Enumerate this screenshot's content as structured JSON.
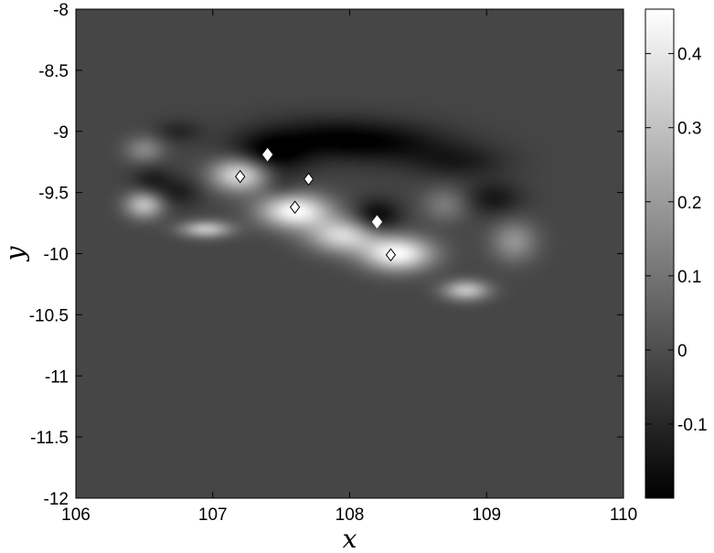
{
  "chart_data": {
    "type": "heatmap",
    "title": "",
    "xlabel": "x",
    "ylabel": "y",
    "xlim": [
      106,
      110
    ],
    "ylim": [
      -12,
      -8
    ],
    "xticks": [
      106,
      107,
      108,
      109,
      110
    ],
    "yticks": [
      -8,
      -8.5,
      -9,
      -9.5,
      -10,
      -10.5,
      -11,
      -11.5,
      -12
    ],
    "colorbar": {
      "range": [
        -0.2,
        0.46
      ],
      "ticks": [
        0.4,
        0.3,
        0.2,
        0.1,
        0,
        -0.1
      ],
      "colormap": "gray"
    },
    "background_value": -0.02,
    "blobs": [
      {
        "x": 107.4,
        "y": -9.2,
        "value": -0.2,
        "sx": 0.2,
        "sy": 0.12
      },
      {
        "x": 107.8,
        "y": -9.05,
        "value": -0.15,
        "sx": 0.35,
        "sy": 0.12
      },
      {
        "x": 108.3,
        "y": -9.1,
        "value": -0.14,
        "sx": 0.35,
        "sy": 0.12
      },
      {
        "x": 108.2,
        "y": -9.7,
        "value": -0.2,
        "sx": 0.12,
        "sy": 0.1
      },
      {
        "x": 108.8,
        "y": -9.25,
        "value": -0.12,
        "sx": 0.25,
        "sy": 0.1
      },
      {
        "x": 109.05,
        "y": -9.55,
        "value": -0.14,
        "sx": 0.15,
        "sy": 0.1
      },
      {
        "x": 106.75,
        "y": -9.0,
        "value": -0.1,
        "sx": 0.12,
        "sy": 0.07
      },
      {
        "x": 106.55,
        "y": -9.4,
        "value": -0.12,
        "sx": 0.1,
        "sy": 0.09
      },
      {
        "x": 106.75,
        "y": -9.5,
        "value": -0.12,
        "sx": 0.12,
        "sy": 0.09
      },
      {
        "x": 107.5,
        "y": -9.45,
        "value": -0.08,
        "sx": 0.1,
        "sy": 0.08
      },
      {
        "x": 107.2,
        "y": -9.35,
        "value": 0.4,
        "sx": 0.15,
        "sy": 0.1
      },
      {
        "x": 107.6,
        "y": -9.65,
        "value": 0.45,
        "sx": 0.18,
        "sy": 0.1
      },
      {
        "x": 107.95,
        "y": -9.85,
        "value": 0.35,
        "sx": 0.18,
        "sy": 0.1
      },
      {
        "x": 108.35,
        "y": -10.0,
        "value": 0.45,
        "sx": 0.18,
        "sy": 0.1
      },
      {
        "x": 106.5,
        "y": -9.6,
        "value": 0.3,
        "sx": 0.1,
        "sy": 0.08
      },
      {
        "x": 106.95,
        "y": -9.8,
        "value": 0.3,
        "sx": 0.13,
        "sy": 0.05
      },
      {
        "x": 106.5,
        "y": -9.15,
        "value": 0.15,
        "sx": 0.1,
        "sy": 0.08
      },
      {
        "x": 108.7,
        "y": -9.6,
        "value": 0.12,
        "sx": 0.12,
        "sy": 0.1
      },
      {
        "x": 109.2,
        "y": -9.9,
        "value": 0.18,
        "sx": 0.12,
        "sy": 0.12
      },
      {
        "x": 108.85,
        "y": -10.3,
        "value": 0.3,
        "sx": 0.12,
        "sy": 0.06
      }
    ],
    "markers": [
      {
        "x": 107.4,
        "y": -9.19,
        "fill": "#ffffff",
        "edge": "#ffffff"
      },
      {
        "x": 107.7,
        "y": -9.39,
        "fill": "#ffffff",
        "edge": "#000000"
      },
      {
        "x": 108.2,
        "y": -9.74,
        "fill": "#ffffff",
        "edge": "#ffffff"
      },
      {
        "x": 107.2,
        "y": -9.37,
        "fill": "#ffffff",
        "edge": "#000000"
      },
      {
        "x": 107.6,
        "y": -9.62,
        "fill": "#ffffff",
        "edge": "#000000"
      },
      {
        "x": 108.3,
        "y": -10.01,
        "fill": "#ffffff",
        "edge": "#000000"
      }
    ]
  }
}
